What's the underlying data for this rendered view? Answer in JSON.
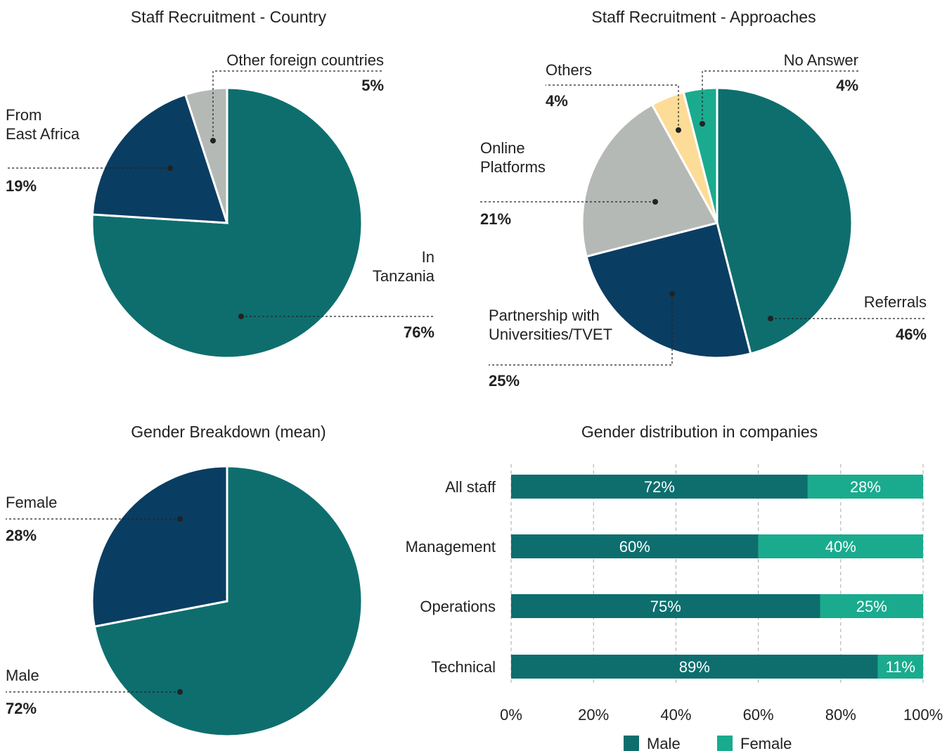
{
  "chart_data": [
    {
      "type": "pie",
      "title": "Staff Recruitment - Country",
      "categories": [
        "In\nTanzania",
        "From\nEast Africa",
        "Other foreign countries"
      ],
      "values": [
        76,
        19,
        5
      ],
      "value_labels": [
        "76%",
        "19%",
        "5%"
      ],
      "colors": [
        "#0e6e6e",
        "#0a3d62",
        "#b5b9b5"
      ]
    },
    {
      "type": "pie",
      "title": "Staff Recruitment - Approaches",
      "categories": [
        "Referrals",
        "Partnership with\nUniversities/TVET",
        "Online\nPlatforms",
        "Others",
        "No Answer"
      ],
      "values": [
        46,
        25,
        21,
        4,
        4
      ],
      "value_labels": [
        "46%",
        "25%",
        "21%",
        "4%",
        "4%"
      ],
      "colors": [
        "#0e6e6e",
        "#0a3d62",
        "#b5b9b5",
        "#fddc97",
        "#1aab8e"
      ]
    },
    {
      "type": "pie",
      "title": "Gender Breakdown (mean)",
      "categories": [
        "Male",
        "Female"
      ],
      "values": [
        72,
        28
      ],
      "value_labels": [
        "72%",
        "28%"
      ],
      "colors": [
        "#0e6e6e",
        "#0a3d62"
      ]
    },
    {
      "type": "stacked_hbar",
      "title": "Gender distribution in companies",
      "categories": [
        "All staff",
        "Management",
        "Operations",
        "Technical"
      ],
      "series": [
        {
          "name": "Male",
          "color": "#0e6e6e",
          "values": [
            72,
            60,
            75,
            89
          ],
          "value_labels": [
            "72%",
            "60%",
            "75%",
            "89%"
          ]
        },
        {
          "name": "Female",
          "color": "#1aab8e",
          "values": [
            28,
            40,
            25,
            11
          ],
          "value_labels": [
            "28%",
            "40%",
            "25%",
            "11%"
          ]
        }
      ],
      "xlim": [
        0,
        100
      ],
      "xticks": [
        {
          "value": 0,
          "label": "0%"
        },
        {
          "value": 20,
          "label": "20%"
        },
        {
          "value": 40,
          "label": "40%"
        },
        {
          "value": 60,
          "label": "60%"
        },
        {
          "value": 80,
          "label": "80%"
        },
        {
          "value": 100,
          "label": "100%"
        }
      ],
      "grid": true,
      "legend": "bottom"
    }
  ]
}
